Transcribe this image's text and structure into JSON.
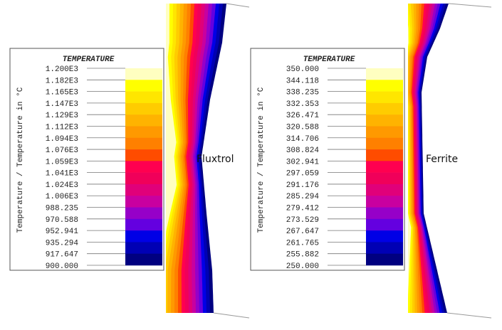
{
  "panels": [
    {
      "label": "Fluxtrol",
      "legend": {
        "title": "TEMPERATURE",
        "axis_label": "Temperature / Temperature in °C",
        "ticks": [
          "1.200E3",
          "1.182E3",
          "1.165E3",
          "1.147E3",
          "1.129E3",
          "1.112E3",
          "1.094E3",
          "1.076E3",
          "1.059E3",
          "1.041E3",
          "1.024E3",
          "1.006E3",
          "988.235",
          "970.588",
          "952.941",
          "935.294",
          "917.647",
          "900.000"
        ],
        "colors": [
          "#ffffc0",
          "#ffff00",
          "#ffe600",
          "#ffcc00",
          "#ffb300",
          "#ff9900",
          "#ff8000",
          "#ff4c00",
          "#ff0050",
          "#f0005a",
          "#e0007a",
          "#c800a0",
          "#9600c8",
          "#6400e0",
          "#0000e6",
          "#0000b4",
          "#000080"
        ]
      }
    },
    {
      "label": "Ferrite",
      "legend": {
        "title": "TEMPERATURE",
        "axis_label": "Temperature / Temperature in °C",
        "ticks": [
          "350.000",
          "344.118",
          "338.235",
          "332.353",
          "326.471",
          "320.588",
          "314.706",
          "308.824",
          "302.941",
          "297.059",
          "291.176",
          "285.294",
          "279.412",
          "273.529",
          "267.647",
          "261.765",
          "255.882",
          "250.000"
        ],
        "colors": [
          "#ffffc0",
          "#ffff00",
          "#ffe600",
          "#ffcc00",
          "#ffb300",
          "#ff9900",
          "#ff8000",
          "#ff4c00",
          "#ff0050",
          "#f0005a",
          "#e0007a",
          "#c800a0",
          "#9600c8",
          "#6400e0",
          "#0000e6",
          "#0000b4",
          "#000080"
        ]
      }
    }
  ]
}
